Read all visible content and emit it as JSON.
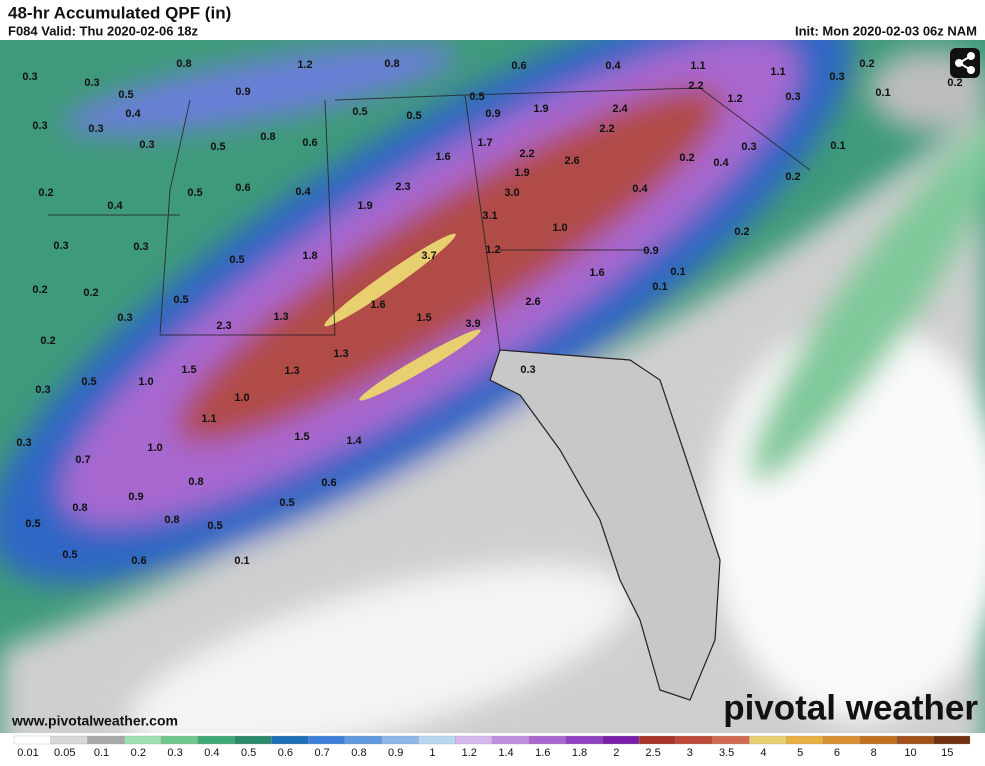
{
  "header": {
    "title": "48-hr Accumulated QPF (in)",
    "valid": "F084 Valid: Thu 2020-02-06 18z",
    "init": "Init: Mon 2020-02-03 06z NAM"
  },
  "footer": {
    "website": "www.pivotalweather.com",
    "logo": "pivotal weather"
  },
  "map_labels": [
    "0.3",
    "0.3",
    "0.5",
    "0.4",
    "0.3",
    "0.3",
    "0.3",
    "0.8",
    "0.9",
    "1.2",
    "0.8",
    "0.6",
    "0.4",
    "1.1",
    "1.1",
    "0.3",
    "0.2",
    "0.1",
    "0.2",
    "0.3",
    "1.2",
    "2.2",
    "2.4",
    "2.2",
    "1.9",
    "0.9",
    "0.5",
    "0.5",
    "0.5",
    "0.5",
    "0.8",
    "0.6",
    "1.6",
    "1.7",
    "2.2",
    "2.6",
    "1.9",
    "0.2",
    "0.4",
    "0.3",
    "0.1",
    "0.2",
    "0.4",
    "0.2",
    "0.4",
    "0.5",
    "0.6",
    "0.4",
    "2.3",
    "3.0",
    "1.9",
    "3.1",
    "1.0",
    "0.2",
    "0.3",
    "0.3",
    "0.5",
    "1.8",
    "3.7",
    "1.2",
    "0.9",
    "1.6",
    "0.1",
    "0.1",
    "0.2",
    "0.2",
    "0.5",
    "0.3",
    "1.3",
    "1.6",
    "1.5",
    "3.9",
    "2.6",
    "2.3",
    "0.2",
    "0.5",
    "1.0",
    "1.5",
    "1.3",
    "1.3",
    "0.3",
    "0.3",
    "1.0",
    "1.1",
    "1.5",
    "1.4",
    "0.3",
    "1.0",
    "0.7",
    "0.8",
    "0.6",
    "0.9",
    "0.5",
    "0.8",
    "0.8",
    "0.5",
    "0.5",
    "0.5",
    "0.6",
    "0.1"
  ],
  "colorbar": {
    "labels": [
      "0.01",
      "0.05",
      "0.1",
      "0.2",
      "0.3",
      "0.4",
      "0.5",
      "0.6",
      "0.7",
      "0.8",
      "0.9",
      "1",
      "1.2",
      "1.4",
      "1.6",
      "1.8",
      "2",
      "2.5",
      "3",
      "3.5",
      "4",
      "5",
      "6",
      "8",
      "10",
      "15"
    ],
    "colors": [
      "#ffffff",
      "#d8d8d8",
      "#a8a8a8",
      "#9fe0b0",
      "#6fc98c",
      "#3fa874",
      "#2a8a6a",
      "#1e6fb8",
      "#3d7fd8",
      "#5f99e0",
      "#8fb8e8",
      "#b8d8f0",
      "#d8b8f0",
      "#c090e0",
      "#a868d0",
      "#9040c0",
      "#7a1ea8",
      "#a8342a",
      "#c04a3a",
      "#d06a50",
      "#e8d070",
      "#e8b040",
      "#d89030",
      "#c07020",
      "#a05018",
      "#703010"
    ]
  }
}
